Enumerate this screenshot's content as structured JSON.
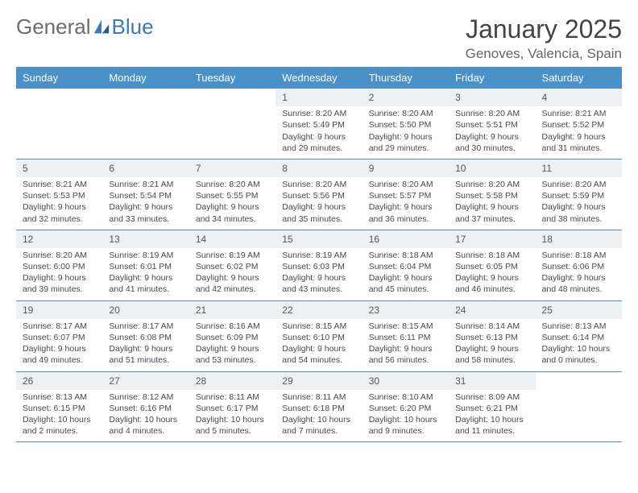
{
  "logo": {
    "text1": "General",
    "text2": "Blue"
  },
  "title": "January 2025",
  "location": "Genoves, Valencia, Spain",
  "colors": {
    "header_bg": "#4a90c9",
    "header_text": "#ffffff",
    "daynum_bg": "#eef1f3",
    "border": "#4a90c9",
    "text": "#4a4a4a",
    "logo_gray": "#6d6d6d",
    "logo_blue": "#3a7ab8"
  },
  "typography": {
    "title_fontsize": 32,
    "location_fontsize": 17,
    "dayheader_fontsize": 13,
    "cell_fontsize": 10.5,
    "daynum_fontsize": 12
  },
  "day_names": [
    "Sunday",
    "Monday",
    "Tuesday",
    "Wednesday",
    "Thursday",
    "Friday",
    "Saturday"
  ],
  "weeks": [
    [
      {
        "day": "",
        "sunrise": "",
        "sunset": "",
        "daylight": ""
      },
      {
        "day": "",
        "sunrise": "",
        "sunset": "",
        "daylight": ""
      },
      {
        "day": "",
        "sunrise": "",
        "sunset": "",
        "daylight": ""
      },
      {
        "day": "1",
        "sunrise": "8:20 AM",
        "sunset": "5:49 PM",
        "daylight": "9 hours and 29 minutes."
      },
      {
        "day": "2",
        "sunrise": "8:20 AM",
        "sunset": "5:50 PM",
        "daylight": "9 hours and 29 minutes."
      },
      {
        "day": "3",
        "sunrise": "8:20 AM",
        "sunset": "5:51 PM",
        "daylight": "9 hours and 30 minutes."
      },
      {
        "day": "4",
        "sunrise": "8:21 AM",
        "sunset": "5:52 PM",
        "daylight": "9 hours and 31 minutes."
      }
    ],
    [
      {
        "day": "5",
        "sunrise": "8:21 AM",
        "sunset": "5:53 PM",
        "daylight": "9 hours and 32 minutes."
      },
      {
        "day": "6",
        "sunrise": "8:21 AM",
        "sunset": "5:54 PM",
        "daylight": "9 hours and 33 minutes."
      },
      {
        "day": "7",
        "sunrise": "8:20 AM",
        "sunset": "5:55 PM",
        "daylight": "9 hours and 34 minutes."
      },
      {
        "day": "8",
        "sunrise": "8:20 AM",
        "sunset": "5:56 PM",
        "daylight": "9 hours and 35 minutes."
      },
      {
        "day": "9",
        "sunrise": "8:20 AM",
        "sunset": "5:57 PM",
        "daylight": "9 hours and 36 minutes."
      },
      {
        "day": "10",
        "sunrise": "8:20 AM",
        "sunset": "5:58 PM",
        "daylight": "9 hours and 37 minutes."
      },
      {
        "day": "11",
        "sunrise": "8:20 AM",
        "sunset": "5:59 PM",
        "daylight": "9 hours and 38 minutes."
      }
    ],
    [
      {
        "day": "12",
        "sunrise": "8:20 AM",
        "sunset": "6:00 PM",
        "daylight": "9 hours and 39 minutes."
      },
      {
        "day": "13",
        "sunrise": "8:19 AM",
        "sunset": "6:01 PM",
        "daylight": "9 hours and 41 minutes."
      },
      {
        "day": "14",
        "sunrise": "8:19 AM",
        "sunset": "6:02 PM",
        "daylight": "9 hours and 42 minutes."
      },
      {
        "day": "15",
        "sunrise": "8:19 AM",
        "sunset": "6:03 PM",
        "daylight": "9 hours and 43 minutes."
      },
      {
        "day": "16",
        "sunrise": "8:18 AM",
        "sunset": "6:04 PM",
        "daylight": "9 hours and 45 minutes."
      },
      {
        "day": "17",
        "sunrise": "8:18 AM",
        "sunset": "6:05 PM",
        "daylight": "9 hours and 46 minutes."
      },
      {
        "day": "18",
        "sunrise": "8:18 AM",
        "sunset": "6:06 PM",
        "daylight": "9 hours and 48 minutes."
      }
    ],
    [
      {
        "day": "19",
        "sunrise": "8:17 AM",
        "sunset": "6:07 PM",
        "daylight": "9 hours and 49 minutes."
      },
      {
        "day": "20",
        "sunrise": "8:17 AM",
        "sunset": "6:08 PM",
        "daylight": "9 hours and 51 minutes."
      },
      {
        "day": "21",
        "sunrise": "8:16 AM",
        "sunset": "6:09 PM",
        "daylight": "9 hours and 53 minutes."
      },
      {
        "day": "22",
        "sunrise": "8:15 AM",
        "sunset": "6:10 PM",
        "daylight": "9 hours and 54 minutes."
      },
      {
        "day": "23",
        "sunrise": "8:15 AM",
        "sunset": "6:11 PM",
        "daylight": "9 hours and 56 minutes."
      },
      {
        "day": "24",
        "sunrise": "8:14 AM",
        "sunset": "6:13 PM",
        "daylight": "9 hours and 58 minutes."
      },
      {
        "day": "25",
        "sunrise": "8:13 AM",
        "sunset": "6:14 PM",
        "daylight": "10 hours and 0 minutes."
      }
    ],
    [
      {
        "day": "26",
        "sunrise": "8:13 AM",
        "sunset": "6:15 PM",
        "daylight": "10 hours and 2 minutes."
      },
      {
        "day": "27",
        "sunrise": "8:12 AM",
        "sunset": "6:16 PM",
        "daylight": "10 hours and 4 minutes."
      },
      {
        "day": "28",
        "sunrise": "8:11 AM",
        "sunset": "6:17 PM",
        "daylight": "10 hours and 5 minutes."
      },
      {
        "day": "29",
        "sunrise": "8:11 AM",
        "sunset": "6:18 PM",
        "daylight": "10 hours and 7 minutes."
      },
      {
        "day": "30",
        "sunrise": "8:10 AM",
        "sunset": "6:20 PM",
        "daylight": "10 hours and 9 minutes."
      },
      {
        "day": "31",
        "sunrise": "8:09 AM",
        "sunset": "6:21 PM",
        "daylight": "10 hours and 11 minutes."
      },
      {
        "day": "",
        "sunrise": "",
        "sunset": "",
        "daylight": ""
      }
    ]
  ],
  "labels": {
    "sunrise": "Sunrise:",
    "sunset": "Sunset:",
    "daylight": "Daylight:"
  }
}
